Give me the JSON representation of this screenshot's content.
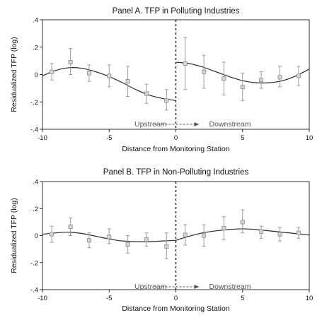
{
  "chart_data": [
    {
      "type": "scatter",
      "title": "Panel A. TFP in Polluting Industries",
      "xlabel": "Distance from Monitoring Station",
      "ylabel": "Residualized TFP (log)",
      "xlim": [
        -10,
        10
      ],
      "ylim": [
        -0.4,
        0.4
      ],
      "xticks": [
        "-10",
        "-5",
        "0",
        "5",
        "10"
      ],
      "yticks": [
        "-.4",
        "-.2",
        "0",
        ".2",
        ".4"
      ],
      "cutoff": 0,
      "annotation": {
        "left": "Upstream",
        "right": "Downstream"
      },
      "points": [
        {
          "x": -9.3,
          "y": 0.02,
          "lo": -0.04,
          "hi": 0.08
        },
        {
          "x": -7.9,
          "y": 0.09,
          "lo": 0.0,
          "hi": 0.19
        },
        {
          "x": -6.5,
          "y": 0.01,
          "lo": -0.05,
          "hi": 0.07
        },
        {
          "x": -5.0,
          "y": -0.01,
          "lo": -0.09,
          "hi": 0.07
        },
        {
          "x": -3.6,
          "y": -0.05,
          "lo": -0.16,
          "hi": 0.06
        },
        {
          "x": -2.2,
          "y": -0.14,
          "lo": -0.21,
          "hi": -0.07
        },
        {
          "x": -0.7,
          "y": -0.19,
          "lo": -0.26,
          "hi": -0.11
        },
        {
          "x": 0.7,
          "y": 0.08,
          "lo": -0.11,
          "hi": 0.27
        },
        {
          "x": 2.1,
          "y": 0.02,
          "lo": -0.1,
          "hi": 0.14
        },
        {
          "x": 3.6,
          "y": -0.03,
          "lo": -0.15,
          "hi": 0.09
        },
        {
          "x": 5.0,
          "y": -0.09,
          "lo": -0.19,
          "hi": 0.01
        },
        {
          "x": 6.4,
          "y": -0.04,
          "lo": -0.1,
          "hi": 0.02
        },
        {
          "x": 7.8,
          "y": -0.02,
          "lo": -0.09,
          "hi": 0.06
        },
        {
          "x": 9.2,
          "y": -0.01,
          "lo": -0.08,
          "hi": 0.06
        }
      ],
      "fit_left": [
        {
          "x": -10,
          "y": -0.01
        },
        {
          "x": -9,
          "y": 0.03
        },
        {
          "x": -8,
          "y": 0.05
        },
        {
          "x": -7,
          "y": 0.045
        },
        {
          "x": -6,
          "y": 0.02
        },
        {
          "x": -5,
          "y": -0.015
        },
        {
          "x": -4,
          "y": -0.06
        },
        {
          "x": -3,
          "y": -0.11
        },
        {
          "x": -2,
          "y": -0.15
        },
        {
          "x": -1,
          "y": -0.175
        },
        {
          "x": 0,
          "y": -0.19
        }
      ],
      "fit_right": [
        {
          "x": 0,
          "y": 0.09
        },
        {
          "x": 1,
          "y": 0.08
        },
        {
          "x": 2,
          "y": 0.055
        },
        {
          "x": 3,
          "y": 0.02
        },
        {
          "x": 4,
          "y": -0.015
        },
        {
          "x": 5,
          "y": -0.045
        },
        {
          "x": 6,
          "y": -0.06
        },
        {
          "x": 7,
          "y": -0.06
        },
        {
          "x": 8,
          "y": -0.045
        },
        {
          "x": 9,
          "y": -0.01
        },
        {
          "x": 10,
          "y": 0.04
        }
      ]
    },
    {
      "type": "scatter",
      "title": "Panel B. TFP in Non-Polluting Industries",
      "xlabel": "Distance from Monitoring Station",
      "ylabel": "Residualized TFP (log)",
      "xlim": [
        -10,
        10
      ],
      "ylim": [
        -0.4,
        0.4
      ],
      "xticks": [
        "-10",
        "-5",
        "0",
        "5",
        "10"
      ],
      "yticks": [
        "-.4",
        "-.2",
        "0",
        ".2",
        ".4"
      ],
      "cutoff": 0,
      "annotation": {
        "left": "Upstream",
        "right": "Downstream"
      },
      "points": [
        {
          "x": -9.3,
          "y": 0.01,
          "lo": -0.05,
          "hi": 0.07
        },
        {
          "x": -7.9,
          "y": 0.065,
          "lo": 0.0,
          "hi": 0.13
        },
        {
          "x": -6.5,
          "y": -0.035,
          "lo": -0.09,
          "hi": 0.02
        },
        {
          "x": -5.0,
          "y": -0.01,
          "lo": -0.06,
          "hi": 0.05
        },
        {
          "x": -3.6,
          "y": -0.065,
          "lo": -0.13,
          "hi": 0.0
        },
        {
          "x": -2.2,
          "y": -0.03,
          "lo": -0.08,
          "hi": 0.02
        },
        {
          "x": -0.7,
          "y": -0.08,
          "lo": -0.17,
          "hi": 0.02
        },
        {
          "x": 0.7,
          "y": 0.005,
          "lo": -0.07,
          "hi": 0.08
        },
        {
          "x": 2.1,
          "y": 0.0,
          "lo": -0.08,
          "hi": 0.08
        },
        {
          "x": 3.6,
          "y": 0.055,
          "lo": -0.03,
          "hi": 0.14
        },
        {
          "x": 5.0,
          "y": 0.1,
          "lo": 0.02,
          "hi": 0.19
        },
        {
          "x": 6.4,
          "y": 0.03,
          "lo": -0.02,
          "hi": 0.07
        },
        {
          "x": 7.8,
          "y": 0.01,
          "lo": -0.04,
          "hi": 0.06
        },
        {
          "x": 9.2,
          "y": 0.02,
          "lo": -0.02,
          "hi": 0.06
        }
      ],
      "fit_left": [
        {
          "x": -10,
          "y": 0.01
        },
        {
          "x": -9,
          "y": 0.02
        },
        {
          "x": -8,
          "y": 0.025
        },
        {
          "x": -7,
          "y": 0.015
        },
        {
          "x": -6,
          "y": -0.005
        },
        {
          "x": -5,
          "y": -0.025
        },
        {
          "x": -4,
          "y": -0.04
        },
        {
          "x": -3,
          "y": -0.045
        },
        {
          "x": -2,
          "y": -0.045
        },
        {
          "x": -1,
          "y": -0.04
        },
        {
          "x": 0,
          "y": -0.035
        }
      ],
      "fit_right": [
        {
          "x": 0,
          "y": -0.035
        },
        {
          "x": 1,
          "y": -0.005
        },
        {
          "x": 2,
          "y": 0.02
        },
        {
          "x": 3,
          "y": 0.035
        },
        {
          "x": 4,
          "y": 0.045
        },
        {
          "x": 5,
          "y": 0.05
        },
        {
          "x": 6,
          "y": 0.045
        },
        {
          "x": 7,
          "y": 0.035
        },
        {
          "x": 8,
          "y": 0.025
        },
        {
          "x": 9,
          "y": 0.015
        },
        {
          "x": 10,
          "y": 0.005
        }
      ]
    }
  ]
}
